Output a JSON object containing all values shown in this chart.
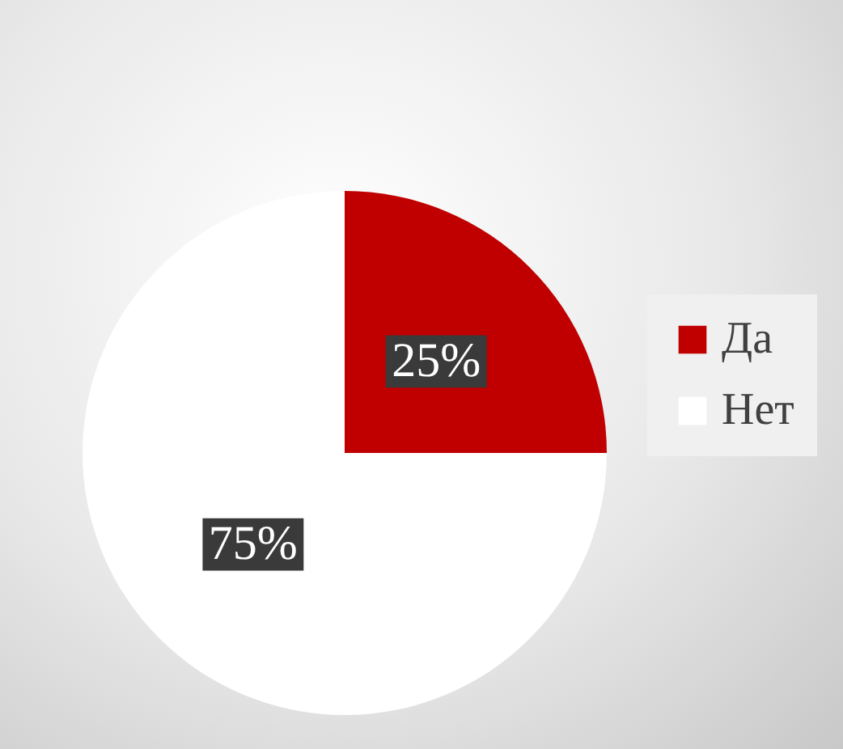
{
  "chart_data": {
    "type": "pie",
    "categories": [
      "Да",
      "Нет"
    ],
    "values": [
      25,
      75
    ],
    "colors": [
      "#c00000",
      "#ffffff"
    ],
    "value_labels": [
      "25%",
      "75%"
    ],
    "legend": "right"
  }
}
